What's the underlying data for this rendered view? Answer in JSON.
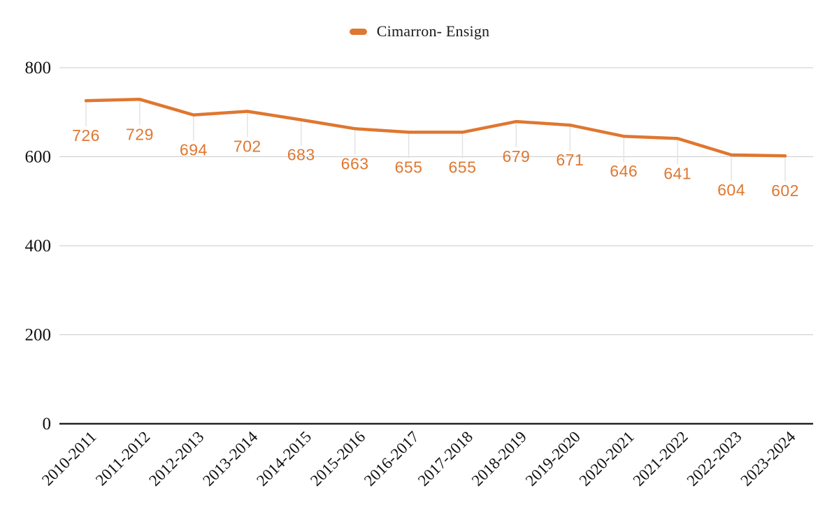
{
  "legend": {
    "label": "Cimarron- Ensign",
    "swatch_color": "#DF7730"
  },
  "chart_data": {
    "type": "line",
    "title": "",
    "categories": [
      "2010-2011",
      "2011-2012",
      "2012-2013",
      "2013-2014",
      "2014-2015",
      "2015-2016",
      "2016-2017",
      "2017-2018",
      "2018-2019",
      "2019-2020",
      "2020-2021",
      "2021-2022",
      "2022-2023",
      "2023-2024"
    ],
    "series": [
      {
        "name": "Cimarron- Ensign",
        "color": "#DF7730",
        "values": [
          726,
          729,
          694,
          702,
          683,
          663,
          655,
          655,
          679,
          671,
          646,
          641,
          604,
          602
        ]
      }
    ],
    "ylim": [
      0,
      800
    ],
    "yticks": [
      0,
      200,
      400,
      600,
      800
    ],
    "grid": true,
    "legend_position": "top",
    "annotations": "values labeled below each point",
    "colors": {
      "gridline": "#cbcbcb",
      "axis_line": "#222222",
      "annotation_stem": "#e3e3e3",
      "data_label": "#DF7730",
      "tick_label": "#111111"
    }
  }
}
